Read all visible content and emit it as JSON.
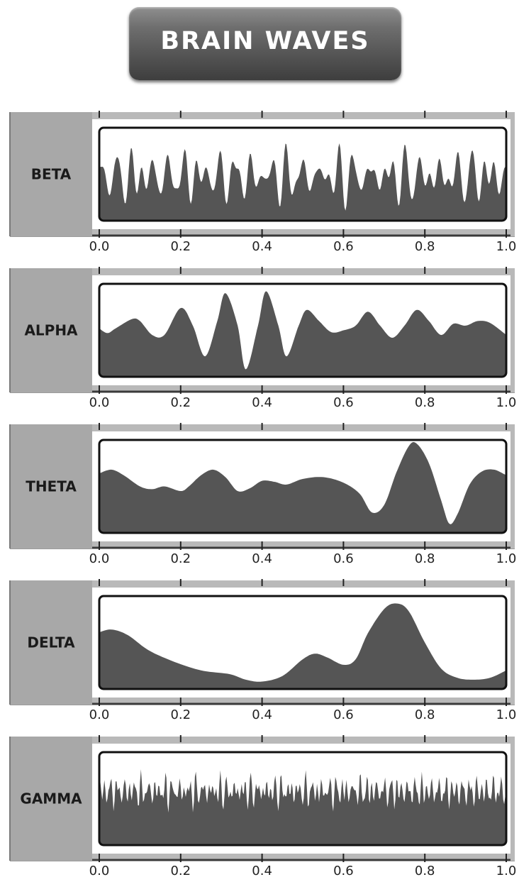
{
  "title": "BRAIN WAVES",
  "colors": {
    "label_panel": "#a8a8a8",
    "wave_fill": "#555555",
    "plot_border": "#111111",
    "frame_bar": "#b9b9b9"
  },
  "chart_data": [
    {
      "type": "area",
      "series": [
        {
          "name": "BETA",
          "freq": [
            24,
            31,
            37,
            45
          ],
          "amp": [
            0.28,
            0.22,
            0.18,
            0.12
          ],
          "base": 0.48,
          "seed": 3
        }
      ],
      "xlim": [
        0.0,
        1.0
      ],
      "ticks": [
        "0.0",
        "0.2",
        "0.4",
        "0.6",
        "0.8",
        "1.0"
      ],
      "grid": false
    },
    {
      "type": "area",
      "series": [
        {
          "name": "ALPHA",
          "freq": [
            9
          ],
          "amp": [
            0.05
          ],
          "base": 0.5,
          "seed": 5
        }
      ],
      "xlim": [
        0.0,
        1.0
      ],
      "ticks": [
        "0.0",
        "0.2",
        "0.4",
        "0.6",
        "0.8",
        "1.0"
      ],
      "grid": false,
      "points": [
        [
          0.0,
          0.52
        ],
        [
          0.02,
          0.47
        ],
        [
          0.04,
          0.52
        ],
        [
          0.08,
          0.62
        ],
        [
          0.1,
          0.6
        ],
        [
          0.13,
          0.45
        ],
        [
          0.16,
          0.45
        ],
        [
          0.2,
          0.74
        ],
        [
          0.23,
          0.55
        ],
        [
          0.26,
          0.22
        ],
        [
          0.29,
          0.6
        ],
        [
          0.31,
          0.9
        ],
        [
          0.34,
          0.55
        ],
        [
          0.36,
          0.08
        ],
        [
          0.39,
          0.55
        ],
        [
          0.41,
          0.92
        ],
        [
          0.44,
          0.55
        ],
        [
          0.46,
          0.22
        ],
        [
          0.49,
          0.55
        ],
        [
          0.51,
          0.72
        ],
        [
          0.54,
          0.6
        ],
        [
          0.57,
          0.48
        ],
        [
          0.6,
          0.5
        ],
        [
          0.63,
          0.55
        ],
        [
          0.66,
          0.7
        ],
        [
          0.69,
          0.55
        ],
        [
          0.72,
          0.42
        ],
        [
          0.75,
          0.55
        ],
        [
          0.78,
          0.72
        ],
        [
          0.81,
          0.6
        ],
        [
          0.84,
          0.45
        ],
        [
          0.87,
          0.57
        ],
        [
          0.9,
          0.55
        ],
        [
          0.93,
          0.6
        ],
        [
          0.96,
          0.58
        ],
        [
          1.0,
          0.45
        ]
      ]
    },
    {
      "type": "area",
      "series": [
        {
          "name": "THETA"
        }
      ],
      "xlim": [
        0.0,
        1.0
      ],
      "ticks": [
        "0.0",
        "0.2",
        "0.4",
        "0.6",
        "0.8",
        "1.0"
      ],
      "grid": false,
      "points": [
        [
          0.0,
          0.64
        ],
        [
          0.03,
          0.68
        ],
        [
          0.06,
          0.62
        ],
        [
          0.1,
          0.5
        ],
        [
          0.13,
          0.47
        ],
        [
          0.16,
          0.5
        ],
        [
          0.2,
          0.45
        ],
        [
          0.22,
          0.5
        ],
        [
          0.25,
          0.62
        ],
        [
          0.28,
          0.68
        ],
        [
          0.31,
          0.6
        ],
        [
          0.34,
          0.45
        ],
        [
          0.37,
          0.48
        ],
        [
          0.4,
          0.56
        ],
        [
          0.43,
          0.55
        ],
        [
          0.46,
          0.52
        ],
        [
          0.5,
          0.58
        ],
        [
          0.55,
          0.6
        ],
        [
          0.6,
          0.54
        ],
        [
          0.64,
          0.42
        ],
        [
          0.67,
          0.22
        ],
        [
          0.7,
          0.3
        ],
        [
          0.73,
          0.65
        ],
        [
          0.76,
          0.93
        ],
        [
          0.78,
          0.96
        ],
        [
          0.81,
          0.75
        ],
        [
          0.84,
          0.35
        ],
        [
          0.86,
          0.1
        ],
        [
          0.88,
          0.2
        ],
        [
          0.91,
          0.52
        ],
        [
          0.94,
          0.66
        ],
        [
          0.97,
          0.68
        ],
        [
          1.0,
          0.62
        ]
      ]
    },
    {
      "type": "area",
      "series": [
        {
          "name": "DELTA"
        }
      ],
      "xlim": [
        0.0,
        1.0
      ],
      "ticks": [
        "0.0",
        "0.2",
        "0.4",
        "0.6",
        "0.8",
        "1.0"
      ],
      "grid": false,
      "points": [
        [
          0.0,
          0.61
        ],
        [
          0.03,
          0.64
        ],
        [
          0.07,
          0.58
        ],
        [
          0.12,
          0.42
        ],
        [
          0.18,
          0.3
        ],
        [
          0.25,
          0.2
        ],
        [
          0.32,
          0.16
        ],
        [
          0.36,
          0.1
        ],
        [
          0.4,
          0.08
        ],
        [
          0.45,
          0.14
        ],
        [
          0.5,
          0.32
        ],
        [
          0.53,
          0.38
        ],
        [
          0.56,
          0.34
        ],
        [
          0.6,
          0.26
        ],
        [
          0.63,
          0.32
        ],
        [
          0.66,
          0.6
        ],
        [
          0.7,
          0.86
        ],
        [
          0.73,
          0.92
        ],
        [
          0.76,
          0.84
        ],
        [
          0.8,
          0.5
        ],
        [
          0.84,
          0.22
        ],
        [
          0.88,
          0.12
        ],
        [
          0.92,
          0.1
        ],
        [
          0.96,
          0.12
        ],
        [
          1.0,
          0.2
        ]
      ]
    },
    {
      "type": "area",
      "series": [
        {
          "name": "GAMMA",
          "freq": [
            52,
            67,
            81,
            97,
            113
          ],
          "amp": [
            0.14,
            0.13,
            0.12,
            0.1,
            0.08
          ],
          "base": 0.58,
          "seed": 11
        }
      ],
      "xlim": [
        0.0,
        1.0
      ],
      "ticks": [
        "0.0",
        "0.2",
        "0.4",
        "0.6",
        "0.8",
        "1.0"
      ],
      "grid": false
    }
  ]
}
